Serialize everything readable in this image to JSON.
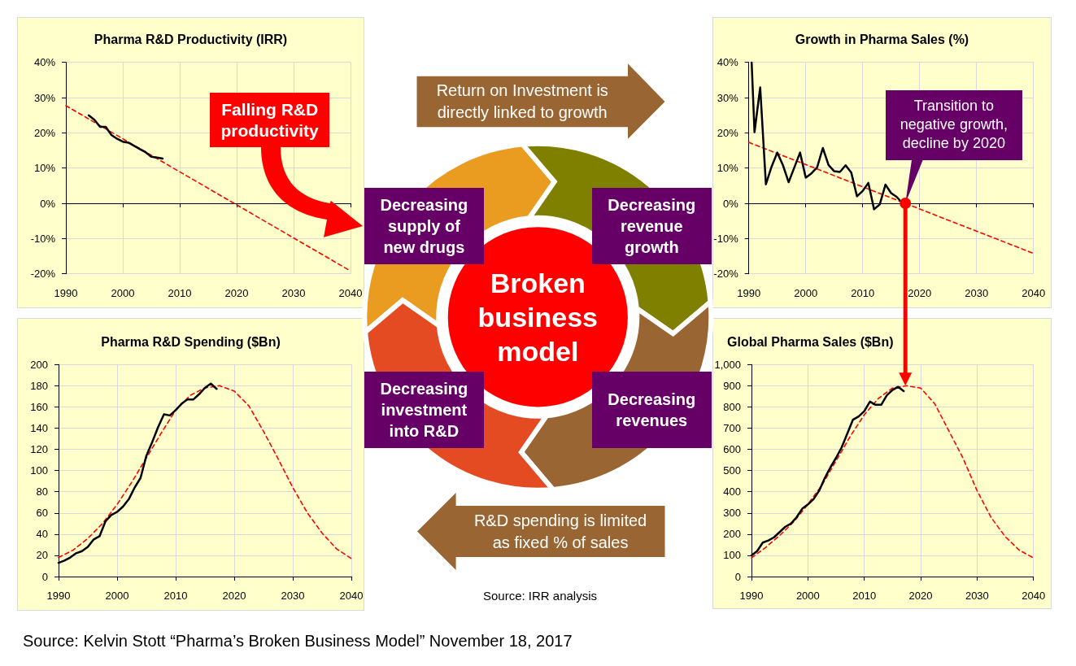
{
  "chart_data": [
    {
      "type": "line",
      "title": "Pharma R&D Productivity (IRR)",
      "annotations": [
        "Falling R&D productivity"
      ],
      "xlim": [
        1990,
        2040
      ],
      "xticks": [
        1990,
        2000,
        2010,
        2020,
        2030,
        2040
      ],
      "ylim": [
        -20,
        40
      ],
      "yticks": [
        {
          "value": -20,
          "label": "-20%"
        },
        {
          "value": -10,
          "label": "-10%"
        },
        {
          "value": 0,
          "label": "0%"
        },
        {
          "value": 10,
          "label": "10%"
        },
        {
          "value": 20,
          "label": "20%"
        },
        {
          "value": 30,
          "label": "30%"
        },
        {
          "value": 40,
          "label": "40%"
        }
      ],
      "grid": true,
      "marker": "none",
      "line_style": "solid",
      "series": [
        {
          "color": "#000000",
          "x": [
            1994,
            1995,
            1996,
            1997,
            1998,
            1999,
            2000,
            2001,
            2002,
            2003,
            2004,
            2005,
            2006,
            2007
          ],
          "values": [
            25,
            23.7,
            21.7,
            21.7,
            19.4,
            18.3,
            17.5,
            17.2,
            16.3,
            15.4,
            14.5,
            13.2,
            13,
            12.7
          ]
        },
        {
          "color": "#ff0000",
          "line_style": "dashed",
          "x": [
            1990,
            2040
          ],
          "values": [
            27.7,
            -19.2
          ]
        }
      ]
    },
    {
      "type": "line",
      "title": "Growth in Pharma Sales (%)",
      "annotations": [
        {
          "text": "Transition to negative growth, decline by 2020",
          "x": 2017.5,
          "y": 0
        }
      ],
      "xlim": [
        1990,
        2040
      ],
      "xticks": [
        1990,
        2000,
        2010,
        2020,
        2030,
        2040
      ],
      "ylim": [
        -20,
        40
      ],
      "yticks": [
        {
          "value": -20,
          "label": "-20%"
        },
        {
          "value": -10,
          "label": "-10%"
        },
        {
          "value": 0,
          "label": "0%"
        },
        {
          "value": 10,
          "label": "10%"
        },
        {
          "value": 20,
          "label": "20%"
        },
        {
          "value": 30,
          "label": "30%"
        },
        {
          "value": 40,
          "label": "40%"
        }
      ],
      "grid": true,
      "marker": "none",
      "line_style": "solid",
      "series": [
        {
          "color": "#000000",
          "x": [
            1990.5,
            1991,
            1992,
            1993,
            1994,
            1995,
            1996,
            1997,
            1998,
            1999,
            2000,
            2001,
            2002,
            2003,
            2004,
            2005,
            2006,
            2007,
            2008,
            2009,
            2010,
            2011,
            2012,
            2013,
            2014,
            2015,
            2016,
            2017
          ],
          "values": [
            40,
            20.2,
            32.9,
            5.4,
            10.4,
            14.4,
            10.8,
            6,
            10.2,
            14.4,
            7.3,
            8.5,
            10.2,
            15.7,
            10.9,
            9.1,
            8.9,
            10.8,
            8.7,
            2,
            3.5,
            5.8,
            -1.7,
            -0.3,
            5.3,
            2.9,
            1.8,
            0
          ]
        },
        {
          "color": "#ff0000",
          "line_style": "dashed",
          "x": [
            1990,
            2040
          ],
          "values": [
            17.3,
            -14.2
          ]
        }
      ]
    },
    {
      "type": "line",
      "title": "Pharma R&D Spending ($Bn)",
      "xlim": [
        1990,
        2040
      ],
      "xticks": [
        1990,
        2000,
        2010,
        2020,
        2030,
        2040
      ],
      "ylim": [
        0,
        200
      ],
      "yticks": [
        0,
        20,
        40,
        60,
        80,
        100,
        120,
        140,
        160,
        180,
        200
      ],
      "grid": true,
      "marker": "none",
      "line_style": "solid",
      "series": [
        {
          "color": "#000000",
          "x": [
            1990,
            1991,
            1992,
            1993,
            1994,
            1995,
            1996,
            1997,
            1998,
            1999,
            2000,
            2001,
            2002,
            2003,
            2004,
            2005,
            2006,
            2007,
            2008,
            2009,
            2010,
            2011,
            2012,
            2013,
            2014,
            2015,
            2016,
            2017
          ],
          "values": [
            13,
            15,
            18,
            22,
            24,
            28,
            35,
            38,
            52,
            58,
            61,
            66,
            73,
            84,
            93,
            114,
            127,
            141,
            153,
            152,
            157,
            163,
            167,
            167,
            172,
            178,
            182,
            177
          ]
        },
        {
          "color": "#ff0000",
          "line_style": "dashed",
          "x": [
            1990,
            1992.5,
            1995,
            1997.5,
            2000,
            2002.5,
            2005,
            2007.5,
            2010,
            2012.5,
            2015,
            2017.5,
            2020,
            2022.5,
            2025,
            2027.5,
            2030,
            2032.5,
            2035,
            2037.5,
            2040
          ],
          "values": [
            18,
            25,
            36,
            50,
            68,
            89,
            112,
            135,
            157,
            171,
            178,
            180,
            175,
            161,
            137,
            111,
            84,
            60,
            41,
            26,
            17
          ]
        }
      ]
    },
    {
      "type": "line",
      "title": "Global Pharma Sales ($Bn)",
      "xlim": [
        1990,
        2040
      ],
      "xticks": [
        1990,
        2000,
        2010,
        2020,
        2030,
        2040
      ],
      "ylim": [
        0,
        1000
      ],
      "yticks": [
        0,
        100,
        200,
        300,
        400,
        500,
        600,
        700,
        800,
        900,
        {
          "value": 1000,
          "label": "1,000"
        }
      ],
      "grid": true,
      "marker": "none",
      "line_style": "solid",
      "series": [
        {
          "color": "#000000",
          "x": [
            1990,
            1991,
            1992,
            1993,
            1994,
            1995,
            1996,
            1997,
            1998,
            1999,
            2000,
            2001,
            2002,
            2003,
            2004,
            2005,
            2006,
            2007,
            2008,
            2009,
            2010,
            2011,
            2012,
            2013,
            2014,
            2015,
            2016,
            2017
          ],
          "values": [
            100,
            120,
            160,
            170,
            185,
            210,
            235,
            250,
            280,
            320,
            340,
            365,
            405,
            465,
            515,
            560,
            610,
            675,
            740,
            755,
            780,
            825,
            810,
            810,
            855,
            880,
            895,
            875
          ]
        },
        {
          "color": "#ff0000",
          "line_style": "dashed",
          "x": [
            1990,
            1992.5,
            1995,
            1997.5,
            2000,
            2002.5,
            2005,
            2007.5,
            2010,
            2012.5,
            2015,
            2017.5,
            2020,
            2022.5,
            2025,
            2027.5,
            2030,
            2032.5,
            2035,
            2037.5,
            2040
          ],
          "values": [
            88,
            137,
            194,
            258,
            341,
            431,
            546,
            661,
            763,
            840,
            889,
            900,
            889,
            815,
            687,
            559,
            405,
            278,
            188,
            124,
            88
          ]
        }
      ]
    },
    {
      "type": "other",
      "title": "Broken business model",
      "annotations": [
        "Return on Investment is directly linked to growth",
        "Decreasing supply of new drugs",
        "Decreasing revenue growth",
        "Decreasing investment into R&D",
        "Decreasing revenues",
        "R&D spending is limited as fixed % of sales",
        "Source: IRR analysis",
        "Source: Kelvin Stott “Pharma’s Broken Business Model” November 18, 2017"
      ]
    }
  ]
}
